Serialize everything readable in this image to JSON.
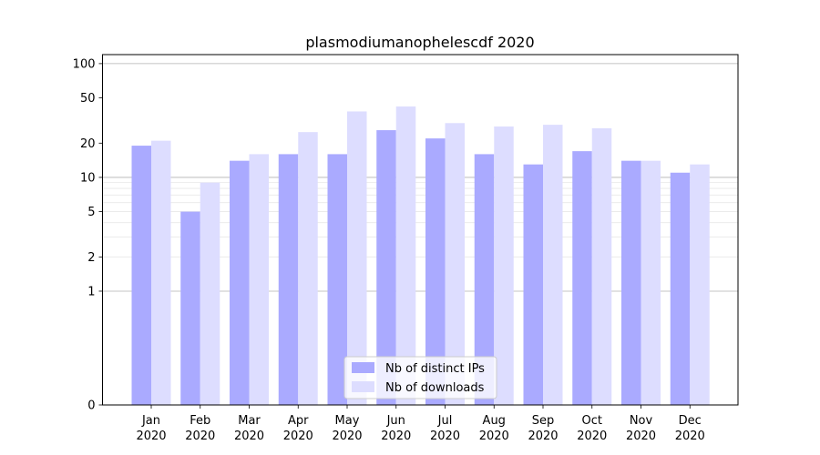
{
  "chart_data": {
    "type": "bar",
    "title": "plasmodiumanophelescdf 2020",
    "xlabel": "",
    "ylabel": "",
    "y_scale": "symlog",
    "ylim": [
      0,
      120
    ],
    "y_ticks": [
      0,
      1,
      2,
      5,
      10,
      20,
      50,
      100
    ],
    "y_tick_labels": [
      "0",
      "1",
      "2",
      "5",
      "10",
      "20",
      "50",
      "100"
    ],
    "categories": [
      [
        "Jan",
        "2020"
      ],
      [
        "Feb",
        "2020"
      ],
      [
        "Mar",
        "2020"
      ],
      [
        "Apr",
        "2020"
      ],
      [
        "May",
        "2020"
      ],
      [
        "Jun",
        "2020"
      ],
      [
        "Jul",
        "2020"
      ],
      [
        "Aug",
        "2020"
      ],
      [
        "Sep",
        "2020"
      ],
      [
        "Oct",
        "2020"
      ],
      [
        "Nov",
        "2020"
      ],
      [
        "Dec",
        "2020"
      ]
    ],
    "series": [
      {
        "name": "Nb of distinct IPs",
        "color": "#aaaaff",
        "values": [
          19,
          5,
          14,
          16,
          16,
          26,
          22,
          16,
          13,
          17,
          14,
          11
        ]
      },
      {
        "name": "Nb of downloads",
        "color": "#ddddff",
        "values": [
          21,
          9,
          16,
          25,
          38,
          42,
          30,
          28,
          29,
          27,
          14,
          13
        ]
      }
    ],
    "grid": true,
    "legend_position": "bottom-center"
  }
}
